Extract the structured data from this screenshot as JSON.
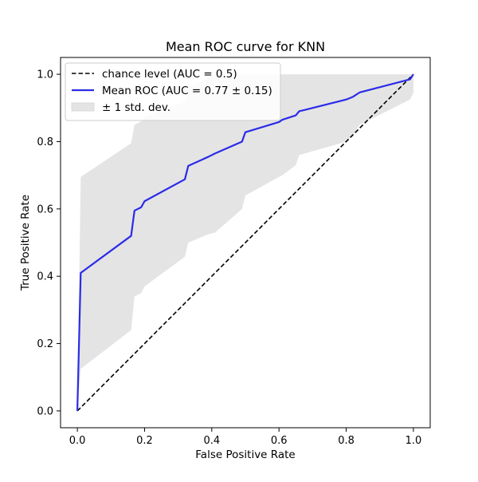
{
  "chart_data": {
    "type": "line",
    "title": "Mean ROC curve for KNN",
    "xlabel": "False Positive Rate",
    "ylabel": "True Positive Rate",
    "xlim": [
      -0.05,
      1.05
    ],
    "ylim": [
      -0.05,
      1.05
    ],
    "grid": false,
    "legend_position": "upper-left",
    "x_ticks": [
      0.0,
      0.2,
      0.4,
      0.6,
      0.8,
      1.0
    ],
    "x_tick_labels": [
      "0.0",
      "0.2",
      "0.4",
      "0.6",
      "0.8",
      "1.0"
    ],
    "y_ticks": [
      0.0,
      0.2,
      0.4,
      0.6,
      0.8,
      1.0
    ],
    "y_tick_labels": [
      "0.0",
      "0.2",
      "0.4",
      "0.6",
      "0.8",
      "1.0"
    ],
    "series": [
      {
        "name": "chance level (AUC = 0.5)",
        "style": "dashed",
        "color": "#000000",
        "x": [
          0,
          1
        ],
        "y": [
          0,
          1
        ]
      },
      {
        "name": "Mean ROC (AUC = 0.77 ± 0.15)",
        "style": "solid",
        "color": "#2b2be8",
        "x": [
          0.0,
          0.01,
          0.16,
          0.17,
          0.19,
          0.2,
          0.32,
          0.33,
          0.39,
          0.41,
          0.49,
          0.5,
          0.6,
          0.61,
          0.65,
          0.66,
          0.8,
          0.82,
          0.84,
          0.99,
          1.0
        ],
        "y": [
          0.0,
          0.41,
          0.52,
          0.595,
          0.605,
          0.623,
          0.688,
          0.728,
          0.755,
          0.765,
          0.8,
          0.828,
          0.858,
          0.865,
          0.878,
          0.89,
          0.925,
          0.933,
          0.946,
          0.985,
          1.0
        ]
      },
      {
        "name": "± 1 std. dev.",
        "style": "band",
        "color": "#e4e4e4",
        "x": [
          0.0,
          0.01,
          0.16,
          0.17,
          0.19,
          0.2,
          0.32,
          0.33,
          0.39,
          0.41,
          0.49,
          0.5,
          0.6,
          0.61,
          0.65,
          0.66,
          0.8,
          0.82,
          0.84,
          0.99,
          1.0
        ],
        "upper": [
          0.0,
          0.695,
          0.795,
          0.85,
          0.86,
          0.875,
          0.918,
          0.96,
          0.99,
          1.0,
          1.0,
          1.0,
          1.0,
          1.0,
          1.0,
          1.0,
          1.0,
          1.0,
          1.0,
          1.0,
          1.0
        ],
        "lower": [
          0.0,
          0.125,
          0.24,
          0.34,
          0.35,
          0.37,
          0.458,
          0.5,
          0.525,
          0.53,
          0.6,
          0.64,
          0.695,
          0.7,
          0.73,
          0.76,
          0.8,
          0.82,
          0.85,
          0.925,
          0.945
        ]
      }
    ],
    "legend": [
      {
        "label": "chance level (AUC = 0.5)",
        "kind": "dashed-line",
        "color": "#000000"
      },
      {
        "label": "Mean ROC (AUC = 0.77 ± 0.15)",
        "kind": "line",
        "color": "#2b2be8"
      },
      {
        "label": "± 1 std. dev.",
        "kind": "patch",
        "color": "#e4e4e4"
      }
    ]
  }
}
